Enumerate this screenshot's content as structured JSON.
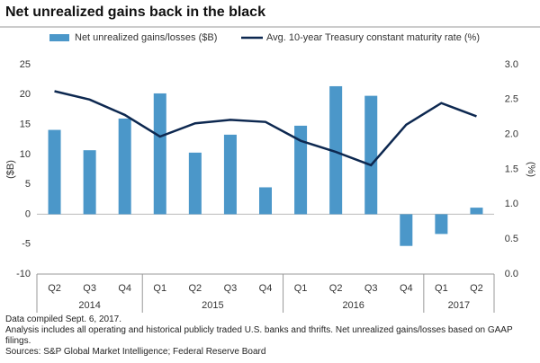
{
  "chart_data": {
    "type": "bar-line",
    "title": "Net unrealized gains back in the black",
    "categories": [
      "Q2",
      "Q3",
      "Q4",
      "Q1",
      "Q2",
      "Q3",
      "Q4",
      "Q1",
      "Q2",
      "Q3",
      "Q4",
      "Q1",
      "Q2"
    ],
    "groups": [
      {
        "label": "2014",
        "count": 3
      },
      {
        "label": "2015",
        "count": 4
      },
      {
        "label": "2016",
        "count": 4
      },
      {
        "label": "2017",
        "count": 2
      }
    ],
    "series": [
      {
        "name": "Net unrealized gains/losses ($B)",
        "color": "#4b97c9",
        "type": "bar",
        "values": [
          14.1,
          10.7,
          16.0,
          20.2,
          10.3,
          13.3,
          4.5,
          14.8,
          21.4,
          19.8,
          -5.3,
          -3.3,
          1.1
        ]
      },
      {
        "name": "Avg. 10-year Treasury constant maturity rate (%)",
        "color": "#0d2850",
        "type": "line",
        "axis": "y2",
        "values": [
          2.62,
          2.5,
          2.28,
          1.97,
          2.16,
          2.21,
          2.18,
          1.91,
          1.75,
          1.56,
          2.14,
          2.45,
          2.26
        ]
      }
    ],
    "ylabel": "($B)",
    "y2label": "(%)",
    "ylim": [
      -10,
      25
    ],
    "yticks": [
      -10,
      -5,
      0,
      5,
      10,
      15,
      20,
      25
    ],
    "y2lim": [
      0,
      3
    ],
    "y2ticks": [
      {
        "value": 0,
        "label": "0.0"
      },
      0.5,
      {
        "value": 1,
        "label": "1.0"
      },
      1.5,
      {
        "value": 2,
        "label": "2.0"
      },
      2.5,
      {
        "value": 3,
        "label": "3.0"
      }
    ],
    "notes": [
      "Data compiled Sept. 6, 2017.",
      "Analysis includes all operating and historical publicly traded U.S. banks and thrifts. Net unrealized gains/losses based on GAAP filings.",
      "Sources: S&P Global Market Intelligence; Federal Reserve Board"
    ]
  }
}
